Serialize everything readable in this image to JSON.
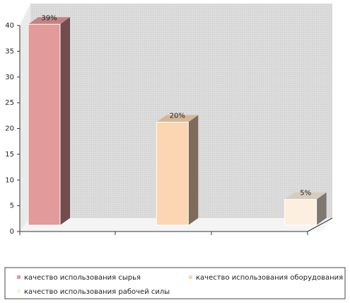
{
  "chart_data": {
    "type": "bar3d",
    "series": [
      {
        "name": "качество использования сырья",
        "color": "#e29a9a",
        "values": [
          39
        ],
        "value_labels": [
          "39%"
        ]
      },
      {
        "name": "качество использования оборудования",
        "color": "#fcd6b2",
        "values": [
          20
        ],
        "value_labels": [
          "20%"
        ]
      },
      {
        "name": "качество использования рабочей силы",
        "color": "#fdefe0",
        "values": [
          5
        ],
        "value_labels": [
          "5%"
        ]
      }
    ],
    "ylim": [
      0,
      40
    ],
    "yticks": [
      0,
      5,
      10,
      15,
      20,
      25,
      30,
      35,
      40
    ],
    "legend": "bottom"
  }
}
